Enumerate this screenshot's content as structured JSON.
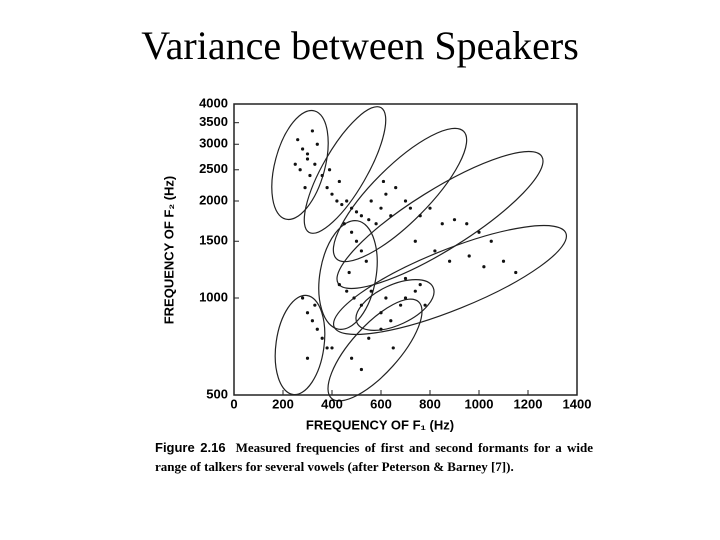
{
  "title": "Variance between Speakers",
  "chart_data": {
    "type": "scatter",
    "x_label": "FREQUENCY OF F₁ (Hz)",
    "y_label": "FREQUENCY OF F₂ (Hz)",
    "xlim": [
      0,
      1400
    ],
    "xticks": [
      0,
      200,
      400,
      600,
      800,
      1000,
      1200,
      1400
    ],
    "ylim": [
      500,
      4000
    ],
    "yticks": [
      500,
      1000,
      1500,
      2000,
      2500,
      3000,
      3500,
      4000
    ],
    "ylog": true,
    "color": "#111111",
    "x": [
      260,
      280,
      300,
      320,
      270,
      310,
      290,
      340,
      250,
      300,
      330,
      360,
      380,
      400,
      420,
      440,
      390,
      430,
      460,
      480,
      500,
      520,
      550,
      580,
      600,
      620,
      640,
      560,
      610,
      660,
      700,
      720,
      760,
      800,
      850,
      900,
      950,
      1000,
      1050,
      740,
      820,
      880,
      960,
      1020,
      1100,
      1150,
      700,
      760,
      620,
      680,
      560,
      600,
      640,
      700,
      740,
      780,
      450,
      480,
      500,
      520,
      540,
      470,
      430,
      460,
      490,
      520,
      280,
      300,
      320,
      340,
      360,
      380,
      300,
      330,
      400,
      480,
      520,
      550,
      600,
      650
    ],
    "y": [
      3100,
      2900,
      2700,
      3300,
      2500,
      2400,
      2200,
      3000,
      2600,
      2800,
      2600,
      2400,
      2200,
      2100,
      2000,
      1950,
      2500,
      2300,
      2000,
      1900,
      1850,
      1800,
      1750,
      1700,
      1900,
      2100,
      1800,
      2000,
      2300,
      2200,
      2000,
      1900,
      1800,
      1900,
      1700,
      1750,
      1700,
      1600,
      1500,
      1500,
      1400,
      1300,
      1350,
      1250,
      1300,
      1200,
      1150,
      1100,
      1000,
      950,
      1050,
      900,
      850,
      1000,
      1050,
      950,
      1700,
      1600,
      1500,
      1400,
      1300,
      1200,
      1100,
      1050,
      1000,
      950,
      1000,
      900,
      850,
      800,
      750,
      700,
      650,
      950,
      700,
      650,
      600,
      750,
      800,
      700
    ]
  },
  "caption": {
    "label": "Figure 2.16",
    "text": "Measured frequencies of first and second formants for a wide range of talkers for several vowels (after Peterson & Barney [7])."
  }
}
